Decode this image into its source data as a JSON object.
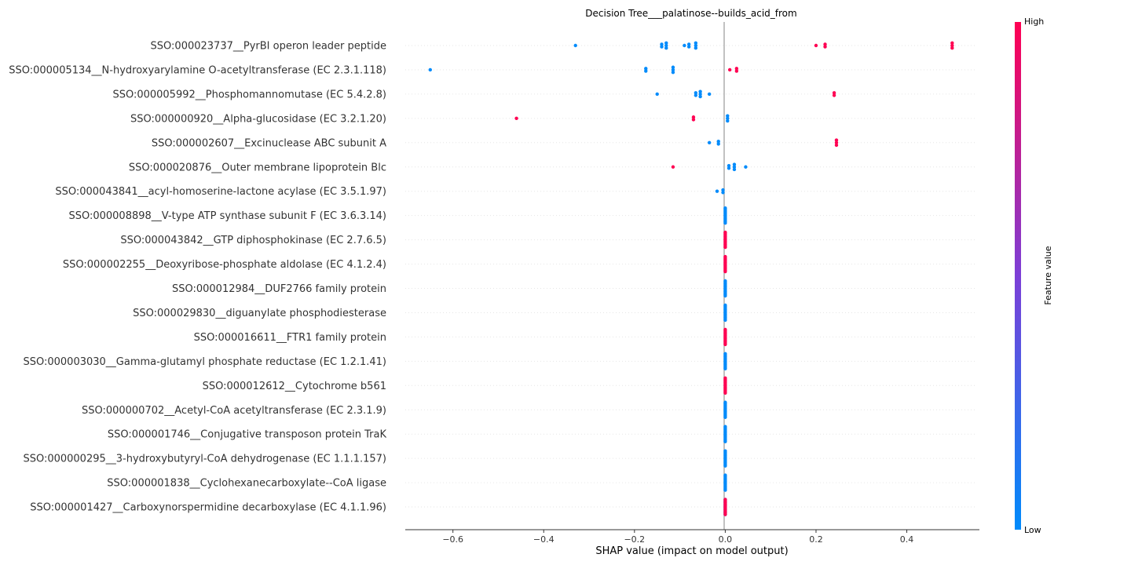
{
  "chart_data": {
    "type": "scatter",
    "title": "Decision Tree___palatinose--builds_acid_from",
    "xlabel": "SHAP value (impact on model output)",
    "ylabel": "",
    "xlim": [
      -0.705,
      0.56
    ],
    "xticks": [
      {
        "value": -0.6,
        "label": "−0.6"
      },
      {
        "value": -0.4,
        "label": "−0.4"
      },
      {
        "value": -0.2,
        "label": "−0.2"
      },
      {
        "value": 0.0,
        "label": "0.0"
      },
      {
        "value": 0.2,
        "label": "0.2"
      },
      {
        "value": 0.4,
        "label": "0.4"
      }
    ],
    "colorbar": {
      "title": "Feature value",
      "high_label": "High",
      "low_label": "Low",
      "high_color": "#ff0052",
      "low_color": "#008bfb"
    },
    "grid": "horizontal dotted row lines",
    "features": [
      {
        "name": "SSO:000023737__PyrBI operon leader peptide",
        "points": [
          [
            -0.33,
            0
          ],
          [
            -0.14,
            0
          ],
          [
            -0.13,
            0
          ],
          [
            -0.09,
            0
          ],
          [
            -0.08,
            0
          ],
          [
            -0.065,
            0
          ],
          [
            0.2,
            1
          ],
          [
            0.22,
            1
          ],
          [
            0.5,
            1
          ]
        ]
      },
      {
        "name": "SSO:000005134__N-hydroxyarylamine O-acetyltransferase (EC 2.3.1.118)",
        "points": [
          [
            -0.65,
            0
          ],
          [
            -0.175,
            0
          ],
          [
            -0.115,
            0
          ],
          [
            0.01,
            1
          ],
          [
            0.025,
            1
          ]
        ]
      },
      {
        "name": "SSO:000005992__Phosphomannomutase (EC 5.4.2.8)",
        "points": [
          [
            -0.15,
            0
          ],
          [
            -0.065,
            0
          ],
          [
            -0.055,
            0
          ],
          [
            -0.035,
            0
          ],
          [
            0.24,
            1
          ]
        ]
      },
      {
        "name": "SSO:000000920__Alpha-glucosidase (EC 3.2.1.20)",
        "points": [
          [
            -0.46,
            1
          ],
          [
            -0.07,
            1
          ],
          [
            0.005,
            0
          ]
        ]
      },
      {
        "name": "SSO:000002607__Excinuclease ABC subunit A",
        "points": [
          [
            -0.035,
            0
          ],
          [
            -0.015,
            0
          ],
          [
            0.245,
            1
          ]
        ]
      },
      {
        "name": "SSO:000020876__Outer membrane lipoprotein Blc",
        "points": [
          [
            -0.115,
            1
          ],
          [
            0.008,
            0
          ],
          [
            0.02,
            0
          ],
          [
            0.045,
            0
          ]
        ]
      },
      {
        "name": "SSO:000043841__acyl-homoserine-lactone acylase (EC 3.5.1.97)",
        "points": [
          [
            -0.018,
            0
          ],
          [
            -0.005,
            0
          ]
        ]
      },
      {
        "name": "SSO:000008898__V-type ATP synthase subunit F (EC 3.6.3.14)",
        "points": [
          [
            0.0,
            0
          ]
        ]
      },
      {
        "name": "SSO:000043842__GTP diphosphokinase (EC 2.7.6.5)",
        "points": [
          [
            0.0,
            1
          ]
        ]
      },
      {
        "name": "SSO:000002255__Deoxyribose-phosphate aldolase (EC 4.1.2.4)",
        "points": [
          [
            0.0,
            1
          ]
        ]
      },
      {
        "name": "SSO:000012984__DUF2766 family protein",
        "points": [
          [
            0.0,
            0
          ]
        ]
      },
      {
        "name": "SSO:000029830__diguanylate phosphodiesterase",
        "points": [
          [
            0.0,
            0
          ]
        ]
      },
      {
        "name": "SSO:000016611__FTR1 family protein",
        "points": [
          [
            0.0,
            1
          ]
        ]
      },
      {
        "name": "SSO:000003030__Gamma-glutamyl phosphate reductase (EC 1.2.1.41)",
        "points": [
          [
            0.0,
            0
          ]
        ]
      },
      {
        "name": "SSO:000012612__Cytochrome b561",
        "points": [
          [
            0.0,
            1
          ]
        ]
      },
      {
        "name": "SSO:000000702__Acetyl-CoA acetyltransferase (EC 2.3.1.9)",
        "points": [
          [
            0.0,
            0
          ]
        ]
      },
      {
        "name": "SSO:000001746__Conjugative transposon protein TraK",
        "points": [
          [
            0.0,
            0
          ]
        ]
      },
      {
        "name": "SSO:000000295__3-hydroxybutyryl-CoA dehydrogenase (EC 1.1.1.157)",
        "points": [
          [
            0.0,
            0
          ]
        ]
      },
      {
        "name": "SSO:000001838__Cyclohexanecarboxylate--CoA ligase",
        "points": [
          [
            0.0,
            0
          ]
        ]
      },
      {
        "name": "SSO:000001427__Carboxynorspermidine decarboxylase (EC 4.1.1.96)",
        "points": [
          [
            0.0,
            0
          ],
          [
            0.0,
            1
          ]
        ]
      }
    ]
  }
}
